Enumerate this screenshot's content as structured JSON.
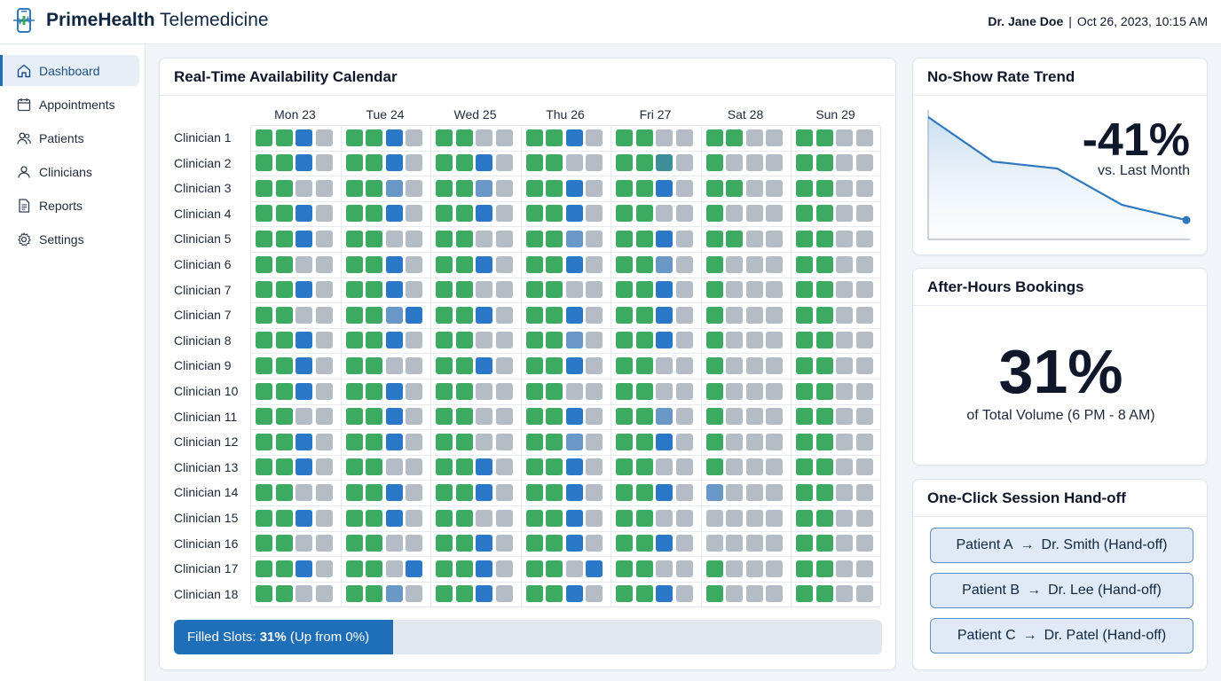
{
  "app": {
    "brand_bold": "PrimeHealth",
    "brand_rest": "Telemedicine",
    "user": "Dr. Jane Doe",
    "separator": "|",
    "datetime": "Oct 26, 2023, 10:15 AM"
  },
  "sidebar": {
    "items": [
      {
        "label": "Dashboard",
        "icon": "home-icon",
        "active": true
      },
      {
        "label": "Appointments",
        "icon": "calendar-icon",
        "active": false
      },
      {
        "label": "Patients",
        "icon": "users-icon",
        "active": false
      },
      {
        "label": "Clinicians",
        "icon": "user-icon",
        "active": false
      },
      {
        "label": "Reports",
        "icon": "document-icon",
        "active": false
      },
      {
        "label": "Settings",
        "icon": "gear-icon",
        "active": false
      }
    ]
  },
  "calendar": {
    "title": "Real-Time Availability Calendar",
    "days": [
      "Mon 23",
      "Tue 24",
      "Wed 25",
      "Thu 26",
      "Fri 27",
      "Sat 28",
      "Sun 29"
    ],
    "legend_colors": {
      "g": "#3daa62",
      "b": "#2a78c7",
      "l": "#6a98c6",
      "t": "#3d8e96",
      "x": "#b4bcc6"
    },
    "rows": [
      {
        "label": "Clinician 1",
        "slots": [
          "ggbx",
          "ggbx",
          "ggxx",
          "ggbx",
          "ggxx",
          "ggxx",
          "ggxx"
        ]
      },
      {
        "label": "Clinician 2",
        "slots": [
          "ggbx",
          "ggbx",
          "ggbx",
          "ggxx",
          "ggtx",
          "gxxx",
          "ggxx"
        ]
      },
      {
        "label": "Clinician 3",
        "slots": [
          "ggxx",
          "gglx",
          "gglx",
          "ggbx",
          "ggbx",
          "ggxx",
          "ggxx"
        ]
      },
      {
        "label": "Clinician 4",
        "slots": [
          "ggbx",
          "ggbx",
          "ggbx",
          "ggbx",
          "ggxx",
          "gxxx",
          "ggxx"
        ]
      },
      {
        "label": "Clinician 5",
        "slots": [
          "ggbx",
          "ggxx",
          "ggxx",
          "gglx",
          "ggbx",
          "ggxx",
          "ggxx"
        ]
      },
      {
        "label": "Clinician 6",
        "slots": [
          "ggxx",
          "ggbx",
          "ggbx",
          "ggbx",
          "gglx",
          "gxxx",
          "ggxx"
        ]
      },
      {
        "label": "Clinician 7",
        "slots": [
          "ggbx",
          "ggbx",
          "ggxx",
          "ggxx",
          "ggbx",
          "gxxx",
          "ggxx"
        ]
      },
      {
        "label": "Clinician 7",
        "slots": [
          "ggxx",
          "gglb",
          "ggbx",
          "ggbx",
          "ggbx",
          "gxxx",
          "ggxx"
        ]
      },
      {
        "label": "Clinician 8",
        "slots": [
          "ggbx",
          "ggbx",
          "ggxx",
          "gglx",
          "ggbx",
          "gxxx",
          "ggxx"
        ]
      },
      {
        "label": "Clinician 9",
        "slots": [
          "ggbx",
          "ggxx",
          "ggbx",
          "ggbx",
          "ggxx",
          "gxxx",
          "ggxx"
        ]
      },
      {
        "label": "Clinician 10",
        "slots": [
          "ggbx",
          "ggbx",
          "ggxx",
          "ggxx",
          "ggxx",
          "gxxx",
          "ggxx"
        ]
      },
      {
        "label": "Clinician 11",
        "slots": [
          "ggxx",
          "ggbx",
          "ggxx",
          "ggbx",
          "gglx",
          "gxxx",
          "ggxx"
        ]
      },
      {
        "label": "Clinician 12",
        "slots": [
          "ggbx",
          "ggbx",
          "ggxx",
          "gglx",
          "ggbx",
          "gxxx",
          "ggxx"
        ]
      },
      {
        "label": "Clinician 13",
        "slots": [
          "ggbx",
          "ggxx",
          "ggbx",
          "ggbx",
          "ggxx",
          "gxxx",
          "ggxx"
        ]
      },
      {
        "label": "Clinician 14",
        "slots": [
          "ggxx",
          "ggbx",
          "ggbx",
          "ggbx",
          "ggbx",
          "lxxx",
          "ggxx"
        ]
      },
      {
        "label": "Clinician 15",
        "slots": [
          "ggbx",
          "ggbx",
          "ggxx",
          "ggbx",
          "ggxx",
          "xxxx",
          "ggxx"
        ]
      },
      {
        "label": "Clinician 16",
        "slots": [
          "ggxx",
          "ggxx",
          "ggbx",
          "ggbx",
          "ggbx",
          "xxxx",
          "ggxx"
        ]
      },
      {
        "label": "Clinician 17",
        "slots": [
          "ggbx",
          "ggxb",
          "ggbx",
          "ggxb",
          "ggxx",
          "gxxx",
          "ggxx"
        ]
      },
      {
        "label": "Clinician 18",
        "slots": [
          "ggxx",
          "gglx",
          "ggbx",
          "ggbx",
          "ggbx",
          "gxxx",
          "ggxx"
        ]
      }
    ],
    "progress": {
      "percent": 31,
      "prefix": "Filled Slots: ",
      "value": "31%",
      "suffix": " (Up from 0%)"
    }
  },
  "noshow": {
    "title": "No-Show Rate Trend",
    "value": "-41%",
    "caption": "vs. Last Month",
    "trend": [
      1.0,
      0.62,
      0.56,
      0.25,
      0.12
    ],
    "line_color": "#2f78bd"
  },
  "afterhours": {
    "title": "After-Hours Bookings",
    "value": "31%",
    "caption": "of Total Volume (6 PM - 8 AM)"
  },
  "handoff": {
    "title": "One-Click Session Hand-off",
    "arrow": "→",
    "items": [
      {
        "patient": "Patient A",
        "target": "Dr. Smith (Hand-off)"
      },
      {
        "patient": "Patient B",
        "target": "Dr. Lee (Hand-off)"
      },
      {
        "patient": "Patient C",
        "target": "Dr. Patel (Hand-off)"
      }
    ]
  }
}
